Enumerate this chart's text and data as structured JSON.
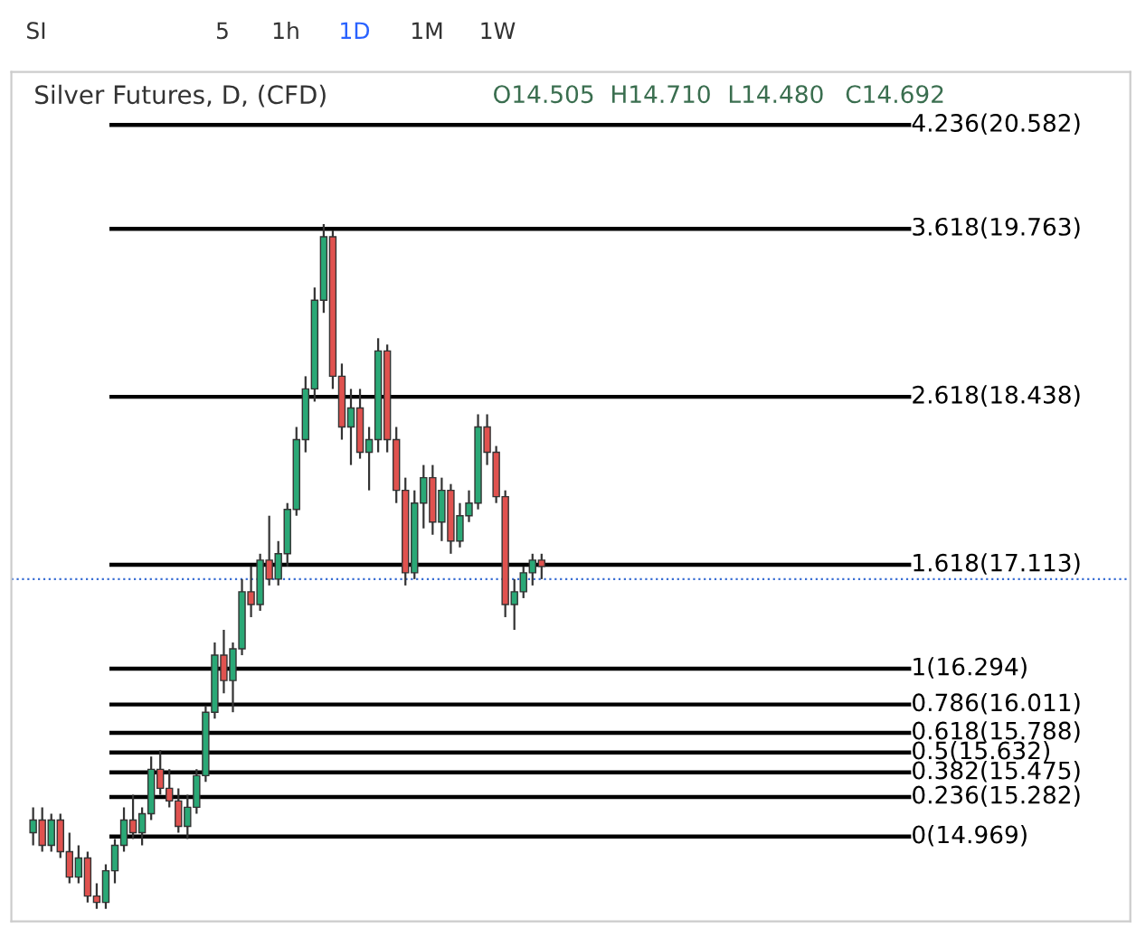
{
  "chart_data": {
    "type": "candlestick",
    "title": "Silver Futures, D, (CFD)",
    "annotations": [
      "O14.505",
      "H14.710",
      "L14.480",
      "C14.692",
      "SI",
      "5",
      "1h",
      "1D",
      "1M",
      "1W"
    ],
    "categories": [
      null,
      null,
      null,
      null,
      null,
      null,
      null,
      null,
      null,
      null,
      null,
      null,
      null,
      null,
      null,
      null,
      null,
      null,
      null,
      null,
      null,
      null,
      null,
      null,
      null,
      null,
      null,
      null,
      null,
      null,
      null,
      null,
      null,
      null,
      null,
      null,
      null,
      null,
      null,
      null,
      null,
      null,
      null,
      null,
      null,
      null,
      null,
      null,
      null,
      null,
      null,
      null,
      null,
      null,
      null,
      null,
      null
    ],
    "ohlc": [
      [
        15.0,
        15.2,
        14.9,
        15.1
      ],
      [
        15.1,
        15.2,
        14.85,
        14.9
      ],
      [
        14.9,
        15.15,
        14.85,
        15.1
      ],
      [
        15.1,
        15.15,
        14.8,
        14.85
      ],
      [
        14.85,
        15.0,
        14.6,
        14.65
      ],
      [
        14.65,
        14.9,
        14.6,
        14.8
      ],
      [
        14.8,
        14.85,
        14.45,
        14.5
      ],
      [
        14.5,
        14.6,
        14.4,
        14.45
      ],
      [
        14.45,
        14.75,
        14.4,
        14.7
      ],
      [
        14.7,
        14.95,
        14.6,
        14.9
      ],
      [
        14.9,
        15.2,
        14.85,
        15.1
      ],
      [
        15.1,
        15.3,
        14.95,
        15.0
      ],
      [
        15.0,
        15.2,
        14.9,
        15.15
      ],
      [
        15.15,
        15.6,
        15.1,
        15.5
      ],
      [
        15.5,
        15.65,
        15.3,
        15.35
      ],
      [
        15.35,
        15.5,
        15.2,
        15.25
      ],
      [
        15.25,
        15.35,
        15.0,
        15.05
      ],
      [
        15.05,
        15.3,
        14.95,
        15.2
      ],
      [
        15.2,
        15.5,
        15.15,
        15.45
      ],
      [
        15.45,
        16.0,
        15.4,
        15.95
      ],
      [
        15.95,
        16.5,
        15.9,
        16.4
      ],
      [
        16.4,
        16.6,
        16.1,
        16.2
      ],
      [
        16.2,
        16.5,
        15.95,
        16.45
      ],
      [
        16.45,
        17.0,
        16.4,
        16.9
      ],
      [
        16.9,
        17.1,
        16.7,
        16.8
      ],
      [
        16.8,
        17.2,
        16.75,
        17.15
      ],
      [
        17.15,
        17.5,
        16.95,
        17.0
      ],
      [
        17.0,
        17.3,
        16.95,
        17.2
      ],
      [
        17.2,
        17.6,
        17.1,
        17.55
      ],
      [
        17.55,
        18.2,
        17.5,
        18.1
      ],
      [
        18.1,
        18.6,
        18.0,
        18.5
      ],
      [
        18.5,
        19.3,
        18.4,
        19.2
      ],
      [
        19.2,
        19.8,
        19.1,
        19.7
      ],
      [
        19.7,
        19.75,
        18.5,
        18.6
      ],
      [
        18.6,
        18.7,
        18.1,
        18.2
      ],
      [
        18.2,
        18.5,
        17.9,
        18.35
      ],
      [
        18.35,
        18.5,
        17.95,
        18.0
      ],
      [
        18.0,
        18.2,
        17.7,
        18.1
      ],
      [
        18.1,
        18.9,
        18.0,
        18.8
      ],
      [
        18.8,
        18.85,
        18.0,
        18.1
      ],
      [
        18.1,
        18.2,
        17.6,
        17.7
      ],
      [
        17.7,
        17.8,
        16.95,
        17.05
      ],
      [
        17.05,
        17.7,
        17.0,
        17.6
      ],
      [
        17.6,
        17.9,
        17.4,
        17.8
      ],
      [
        17.8,
        17.9,
        17.35,
        17.45
      ],
      [
        17.45,
        17.8,
        17.3,
        17.7
      ],
      [
        17.7,
        17.75,
        17.2,
        17.3
      ],
      [
        17.3,
        17.6,
        17.25,
        17.5
      ],
      [
        17.5,
        17.7,
        17.45,
        17.6
      ],
      [
        17.6,
        18.3,
        17.55,
        18.2
      ],
      [
        18.2,
        18.3,
        17.9,
        18.0
      ],
      [
        18.0,
        18.05,
        17.6,
        17.65
      ],
      [
        17.65,
        17.7,
        16.7,
        16.8
      ],
      [
        16.8,
        17.0,
        16.6,
        16.9
      ],
      [
        16.9,
        17.1,
        16.85,
        17.05
      ],
      [
        17.05,
        17.2,
        16.95,
        17.15
      ],
      [
        17.15,
        17.2,
        17.0,
        17.1
      ]
    ],
    "ylim": [
      14.3,
      21.0
    ],
    "tick_labels": false,
    "grid": false,
    "ref_lines": [
      {
        "axis": "y",
        "value": 20.582,
        "label": "4.236(20.582)",
        "color": "#000000"
      },
      {
        "axis": "y",
        "value": 19.763,
        "label": "3.618(19.763)",
        "color": "#000000"
      },
      {
        "axis": "y",
        "value": 18.438,
        "label": "2.618(18.438)",
        "color": "#000000"
      },
      {
        "axis": "y",
        "value": 17.113,
        "label": "1.618(17.113)",
        "color": "#000000"
      },
      {
        "axis": "y",
        "value": 16.294,
        "label": "1(16.294)",
        "color": "#000000"
      },
      {
        "axis": "y",
        "value": 16.011,
        "label": "0.786(16.011)",
        "color": "#000000"
      },
      {
        "axis": "y",
        "value": 15.788,
        "label": "0.618(15.788)",
        "color": "#000000"
      },
      {
        "axis": "y",
        "value": 15.632,
        "label": "0.5(15.632)",
        "color": "#000000"
      },
      {
        "axis": "y",
        "value": 15.475,
        "label": "0.382(15.475)",
        "color": "#000000"
      },
      {
        "axis": "y",
        "value": 15.282,
        "label": "0.236(15.282)",
        "color": "#000000"
      },
      {
        "axis": "y",
        "value": 14.969,
        "label": "0(14.969)",
        "color": "#000000"
      },
      {
        "axis": "y",
        "value": 17.0,
        "color": "#3b6fd4",
        "line_style": "dotted"
      }
    ]
  }
}
